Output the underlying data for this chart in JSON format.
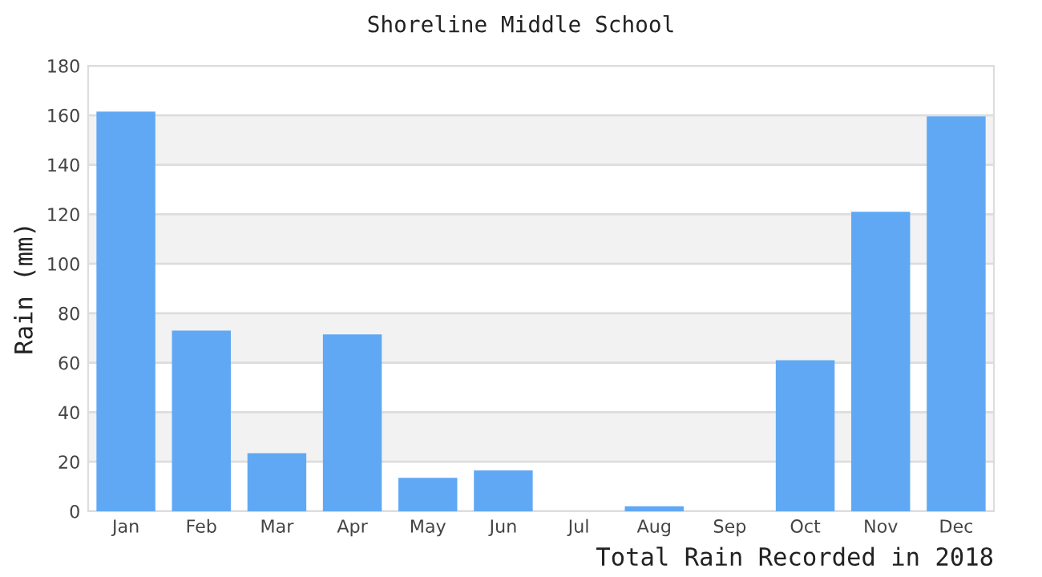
{
  "chart_data": {
    "type": "bar",
    "title": "Shoreline Middle School",
    "xlabel": "Total Rain Recorded in 2018",
    "ylabel": "Rain (mm)",
    "categories": [
      "Jan",
      "Feb",
      "Mar",
      "Apr",
      "May",
      "Jun",
      "Jul",
      "Aug",
      "Sep",
      "Oct",
      "Nov",
      "Dec"
    ],
    "values": [
      161.5,
      73,
      23.5,
      71.5,
      13.5,
      16.5,
      0,
      2,
      0,
      61,
      121,
      159.5
    ],
    "color": "#60a8f4",
    "ylim": [
      0,
      180
    ],
    "yticks": [
      0,
      20,
      40,
      60,
      80,
      100,
      120,
      140,
      160,
      180
    ],
    "grid": "y"
  }
}
